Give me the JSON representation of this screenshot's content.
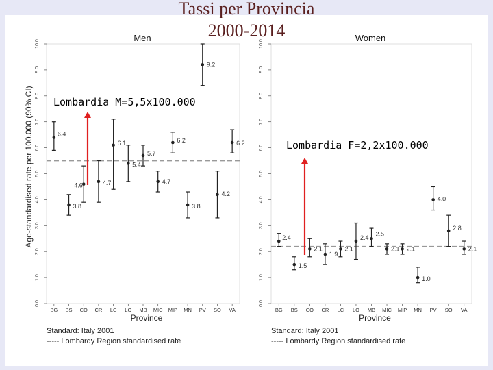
{
  "slide": {
    "title_line1": "Tassi per Provincia",
    "title_line2": "2000-2014",
    "annotation_men": "Lombardia M=5,5x100.000",
    "annotation_women": "Lombardia F=2,2x100.000"
  },
  "colors": {
    "background": "#e7e8f6",
    "title": "#5a1f1f",
    "arrow": "#e02020",
    "marker": "#222222",
    "reference_line": "#999999"
  },
  "chart_data": [
    {
      "type": "scatter",
      "title": "Men",
      "xlabel": "Province",
      "ylabel": "Age-standardised rate per 100.000 (90% CI)",
      "ylim": [
        0,
        10
      ],
      "yticks": [
        "0.0",
        "1.0",
        "2.0",
        "3.0",
        "4.0",
        "5.0",
        "6.0",
        "7.0",
        "8.0",
        "9.0",
        "10.0"
      ],
      "categories": [
        "BG",
        "BS",
        "CO",
        "CR",
        "LC",
        "LO",
        "MB",
        "MIC",
        "MIP",
        "MN",
        "PV",
        "SO",
        "VA"
      ],
      "values": [
        6.4,
        3.8,
        4.6,
        4.7,
        6.1,
        5.4,
        5.7,
        4.7,
        6.2,
        3.8,
        9.2,
        4.2,
        6.2
      ],
      "value_labels": [
        "6.4",
        "3.8",
        "4.6",
        "4.7",
        "6.1",
        "5.4",
        "5.7",
        "4.7",
        "6.2",
        "3.8",
        "9.2",
        "4.2",
        "6.2"
      ],
      "ci_low": [
        5.9,
        3.4,
        3.9,
        3.9,
        4.4,
        4.7,
        5.3,
        4.3,
        5.8,
        3.3,
        8.4,
        3.3,
        5.8
      ],
      "ci_high": [
        7.0,
        4.2,
        5.3,
        5.5,
        7.1,
        6.1,
        6.1,
        5.1,
        6.6,
        4.3,
        10.0,
        5.1,
        6.7
      ],
      "reference": 5.5,
      "footnote1": "Standard: Italy 2001",
      "footnote2": "----- Lombardy Region standardised rate"
    },
    {
      "type": "scatter",
      "title": "Women",
      "xlabel": "Province",
      "ylabel": "",
      "ylim": [
        0,
        10
      ],
      "yticks": [
        "0.0",
        "1.0",
        "2.0",
        "3.0",
        "4.0",
        "5.0",
        "6.0",
        "7.0",
        "8.0",
        "9.0",
        "10.0"
      ],
      "categories": [
        "BG",
        "BS",
        "CO",
        "CR",
        "LC",
        "LO",
        "MB",
        "MIC",
        "MIP",
        "MN",
        "PV",
        "SO",
        "VA"
      ],
      "values": [
        2.4,
        1.5,
        2.1,
        1.9,
        2.1,
        2.4,
        2.5,
        2.1,
        2.1,
        1.0,
        4.0,
        2.8,
        2.1
      ],
      "value_labels": [
        "2.4",
        "1.5",
        "2.1",
        "1.9",
        "2.1",
        "2.4",
        "2.5",
        "2.1",
        "2.1",
        "1.0",
        "4.0",
        "2.8",
        "2.1"
      ],
      "ci_low": [
        2.2,
        1.3,
        1.8,
        1.5,
        1.8,
        1.7,
        2.2,
        1.9,
        1.9,
        0.8,
        3.6,
        2.2,
        1.9
      ],
      "ci_high": [
        2.7,
        1.8,
        2.5,
        2.3,
        2.4,
        3.1,
        2.9,
        2.3,
        2.3,
        1.4,
        4.5,
        3.4,
        2.4
      ],
      "reference": 2.2,
      "footnote1": "Standard: Italy 2001",
      "footnote2": "----- Lombardy Region standardised rate"
    }
  ]
}
